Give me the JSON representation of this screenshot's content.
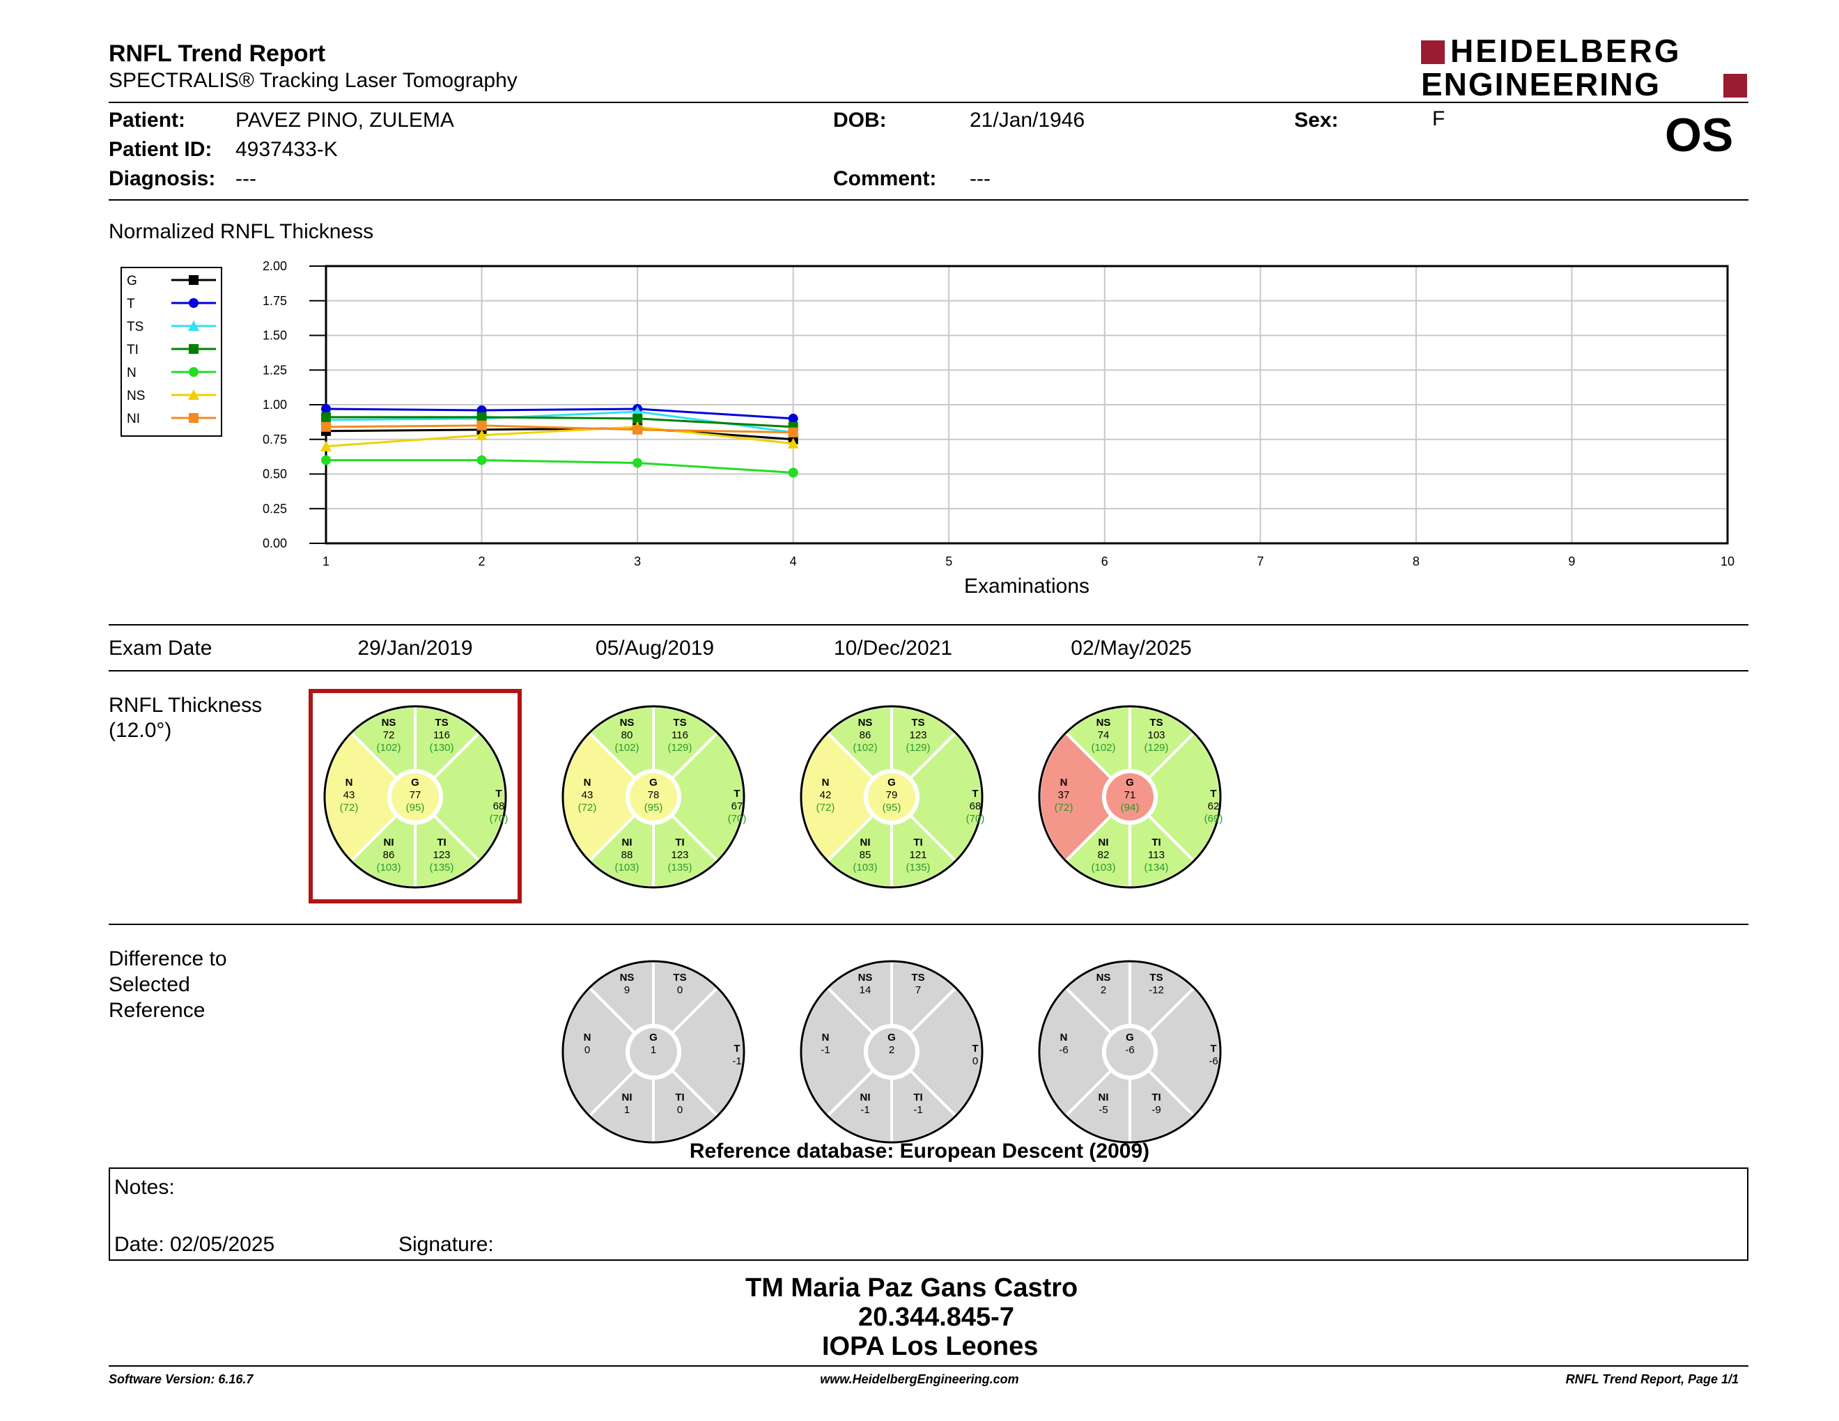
{
  "header": {
    "title": "RNFL Trend Report",
    "subtitle": "SPECTRALIS® Tracking Laser Tomography",
    "logo_line1": "HEIDELBERG",
    "logo_line2": "ENGINEERING",
    "eye": "OS"
  },
  "patient": {
    "patient_label": "Patient:",
    "patient_value": "PAVEZ PINO, ZULEMA",
    "id_label": "Patient ID:",
    "id_value": "4937433-K",
    "diagnosis_label": "Diagnosis:",
    "diagnosis_value": "---",
    "dob_label": "DOB:",
    "dob_value": "21/Jan/1946",
    "comment_label": "Comment:",
    "comment_value": "---",
    "sex_label": "Sex:",
    "sex_value": "F"
  },
  "chart_data": {
    "type": "line",
    "title": "Normalized RNFL Thickness",
    "xlabel": "Examinations",
    "ylabel": "",
    "xlim": [
      1,
      10
    ],
    "ylim": [
      0,
      2
    ],
    "x_ticks": [
      "1",
      "2",
      "3",
      "4",
      "5",
      "6",
      "7",
      "8",
      "9",
      "10"
    ],
    "y_ticks": [
      "0.00",
      "0.25",
      "0.50",
      "0.75",
      "1.00",
      "1.25",
      "1.50",
      "1.75",
      "2.00"
    ],
    "grid": true,
    "legend_position": "top-left",
    "x": [
      1,
      2,
      3,
      4
    ],
    "series": [
      {
        "name": "G",
        "color": "#000000",
        "marker": "square",
        "values": [
          0.81,
          0.82,
          0.83,
          0.75
        ]
      },
      {
        "name": "T",
        "color": "#0000dd",
        "marker": "circle",
        "values": [
          0.97,
          0.96,
          0.97,
          0.9
        ]
      },
      {
        "name": "TS",
        "color": "#33e0f0",
        "marker": "triangle",
        "values": [
          0.89,
          0.9,
          0.95,
          0.8
        ]
      },
      {
        "name": "TI",
        "color": "#008000",
        "marker": "square",
        "values": [
          0.91,
          0.91,
          0.9,
          0.84
        ]
      },
      {
        "name": "N",
        "color": "#22dd22",
        "marker": "circle",
        "values": [
          0.6,
          0.6,
          0.58,
          0.51
        ]
      },
      {
        "name": "NS",
        "color": "#f0d000",
        "marker": "triangle",
        "values": [
          0.7,
          0.78,
          0.84,
          0.72
        ]
      },
      {
        "name": "NI",
        "color": "#f58a1f",
        "marker": "square",
        "values": [
          0.84,
          0.85,
          0.82,
          0.8
        ]
      }
    ]
  },
  "exams": {
    "label": "Exam Date",
    "dates": [
      "29/Jan/2019",
      "05/Aug/2019",
      "10/Dec/2021",
      "02/May/2025"
    ]
  },
  "thickness": {
    "label_line1": "RNFL Thickness",
    "label_line2": "(12.0°)",
    "circles": [
      {
        "NS": [
          "72",
          "(102)"
        ],
        "TS": [
          "116",
          "(130)"
        ],
        "N": [
          "43",
          "(72)"
        ],
        "G": [
          "77",
          "(95)"
        ],
        "T": [
          "68",
          "(70)"
        ],
        "NI": [
          "86",
          "(103)"
        ],
        "TI": [
          "123",
          "(135)"
        ],
        "colors": {
          "NS": "#c8f58a",
          "TS": "#c8f58a",
          "N": "#f8f898",
          "G": "#f8f898",
          "T": "#c8f58a",
          "NI": "#c8f58a",
          "TI": "#c8f58a"
        }
      },
      {
        "NS": [
          "80",
          "(102)"
        ],
        "TS": [
          "116",
          "(129)"
        ],
        "N": [
          "43",
          "(72)"
        ],
        "G": [
          "78",
          "(95)"
        ],
        "T": [
          "67",
          "(70)"
        ],
        "NI": [
          "88",
          "(103)"
        ],
        "TI": [
          "123",
          "(135)"
        ],
        "colors": {
          "NS": "#c8f58a",
          "TS": "#c8f58a",
          "N": "#f8f898",
          "G": "#f8f898",
          "T": "#c8f58a",
          "NI": "#c8f58a",
          "TI": "#c8f58a"
        }
      },
      {
        "NS": [
          "86",
          "(102)"
        ],
        "TS": [
          "123",
          "(129)"
        ],
        "N": [
          "42",
          "(72)"
        ],
        "G": [
          "79",
          "(95)"
        ],
        "T": [
          "68",
          "(70)"
        ],
        "NI": [
          "85",
          "(103)"
        ],
        "TI": [
          "121",
          "(135)"
        ],
        "colors": {
          "NS": "#c8f58a",
          "TS": "#c8f58a",
          "N": "#f8f898",
          "G": "#f8f898",
          "T": "#c8f58a",
          "NI": "#c8f58a",
          "TI": "#c8f58a"
        }
      },
      {
        "NS": [
          "74",
          "(102)"
        ],
        "TS": [
          "103",
          "(129)"
        ],
        "N": [
          "37",
          "(72)"
        ],
        "G": [
          "71",
          "(94)"
        ],
        "T": [
          "62",
          "(69)"
        ],
        "NI": [
          "82",
          "(103)"
        ],
        "TI": [
          "113",
          "(134)"
        ],
        "colors": {
          "NS": "#c8f58a",
          "TS": "#c8f58a",
          "N": "#f5968a",
          "G": "#f5968a",
          "T": "#c8f58a",
          "NI": "#c8f58a",
          "TI": "#c8f58a"
        }
      }
    ]
  },
  "difference": {
    "label_line1": "Difference to",
    "label_line2": "Selected",
    "label_line3": "Reference",
    "circles": [
      {
        "NS": "9",
        "TS": "0",
        "N": "0",
        "G": "1",
        "T": "-1",
        "NI": "1",
        "TI": "0"
      },
      {
        "NS": "14",
        "TS": "7",
        "N": "-1",
        "G": "2",
        "T": "0",
        "NI": "-1",
        "TI": "-1"
      },
      {
        "NS": "2",
        "TS": "-12",
        "N": "-6",
        "G": "-6",
        "T": "-6",
        "NI": "-5",
        "TI": "-9"
      }
    ]
  },
  "reference_db": "Reference database: European Descent (2009)",
  "notes": {
    "notes_label": "Notes:",
    "date_label": "Date: 02/05/2025",
    "signature_label": "Signature:"
  },
  "stamp": {
    "line1": "TM Maria Paz Gans Castro",
    "line2": "20.344.845-7",
    "line3": "IOPA Los Leones"
  },
  "footer": {
    "left": "Software Version: 6.16.7",
    "center": "www.HeidelbergEngineering.com",
    "right": "RNFL Trend Report, Page 1/1"
  },
  "colors": {
    "brand": "#9b1b30",
    "selected_frame": "#b01515",
    "normal": "#c8f58a",
    "borderline": "#f8f898",
    "outside": "#f5968a",
    "difference": "#d4d4d4"
  }
}
